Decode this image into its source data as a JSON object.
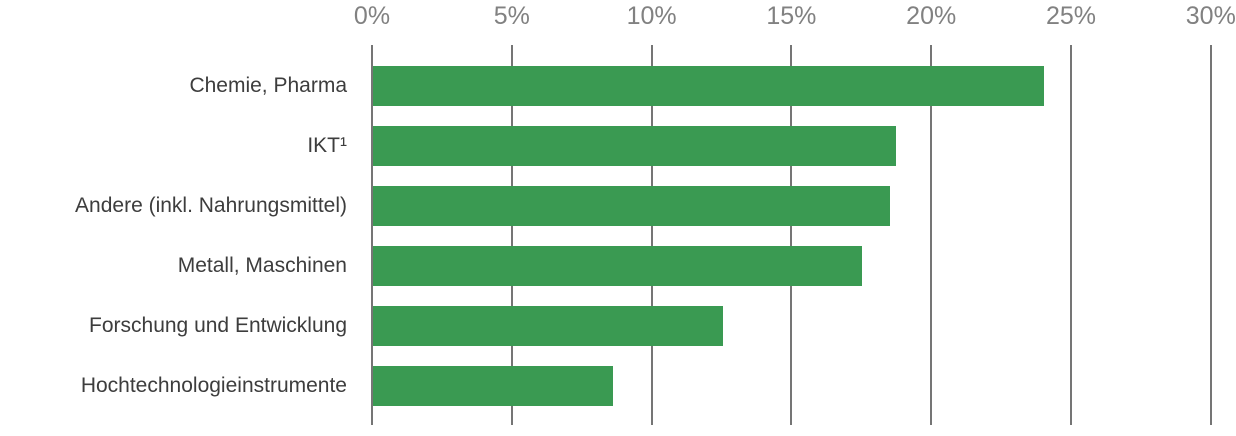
{
  "chart_data": {
    "type": "bar",
    "orientation": "horizontal",
    "title": "",
    "xlabel": "",
    "ylabel": "",
    "categories": [
      "Chemie, Pharma",
      "IKT¹",
      "Andere (inkl. Nahrungsmittel)",
      "Metall, Maschinen",
      "Forschung und Entwicklung",
      "Hochtechnologieinstrumente"
    ],
    "values": [
      24.0,
      18.7,
      18.5,
      17.5,
      12.5,
      8.6
    ],
    "unit": "%",
    "xlim": [
      0,
      30
    ],
    "x_ticks": [
      "0%",
      "5%",
      "10%",
      "15%",
      "20%",
      "25%",
      "30%"
    ],
    "x_tick_values": [
      0,
      5,
      10,
      15,
      20,
      25,
      30
    ],
    "grid": true,
    "axis_position": "top",
    "legend": "none",
    "colors": {
      "bar": "#3a9a52",
      "gridline": "#757575",
      "tick_label": "#818181",
      "category_label": "#3d3d3d",
      "background": "#ffffff"
    }
  }
}
